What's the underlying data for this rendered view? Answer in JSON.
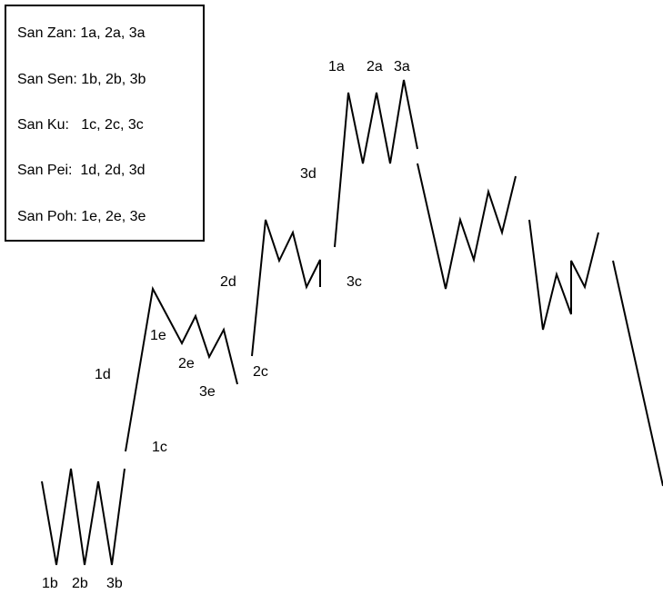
{
  "legend": {
    "rows": [
      "San Zan: 1a, 2a, 3a",
      "San Sen: 1b, 2b, 3b",
      "San Ku:   1c, 2c, 3c",
      "San Pei:  1d, 2d, 3d",
      "San Poh: 1e, 2e, 3e"
    ]
  },
  "labels": {
    "l1a": "1a",
    "l2a": "2a",
    "l3a": "3a",
    "l1b": "1b",
    "l2b": "2b",
    "l3b": "3b",
    "l1c": "1c",
    "l2c": "2c",
    "l3c": "3c",
    "l1d": "1d",
    "l2d": "2d",
    "l3d": "3d",
    "l1e": "1e",
    "l2e": "2e",
    "l3e": "3e"
  }
}
